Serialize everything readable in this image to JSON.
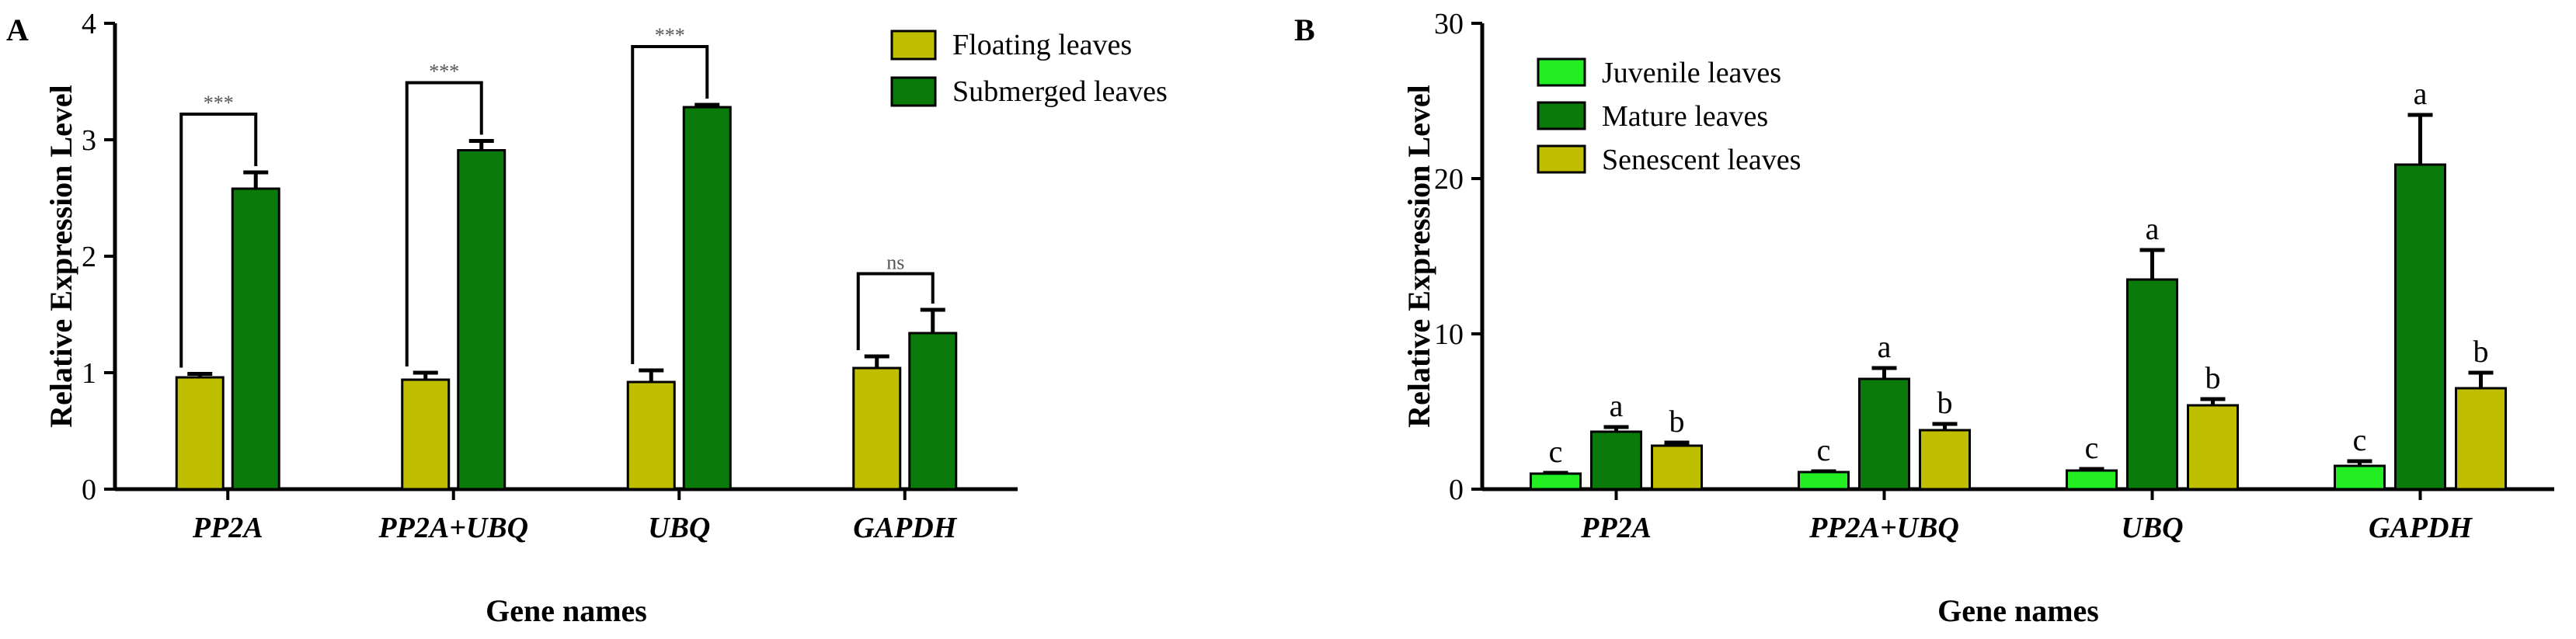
{
  "colors": {
    "floating": "#bfbf00",
    "submerged": "#0a7a0a",
    "juvenile": "#22ee22",
    "mature": "#0a7a0a",
    "senescent": "#bfbf00",
    "axis": "#000000",
    "bracket": "#000000"
  },
  "chart_data": [
    {
      "panel": "A",
      "type": "bar",
      "xlabel": "Gene names",
      "ylabel": "Relative Expression Level",
      "ylim": [
        0,
        4
      ],
      "yticks": [
        "0",
        "1",
        "2",
        "3",
        "4"
      ],
      "categories": [
        "PP2A",
        "PP2A+UBQ",
        "UBQ",
        "GAPDH"
      ],
      "series": [
        {
          "name": "Floating  leaves",
          "values": [
            0.96,
            0.94,
            0.92,
            1.04
          ],
          "errors": [
            0.03,
            0.06,
            0.1,
            0.1
          ],
          "color_key": "floating"
        },
        {
          "name": "Submerged leaves",
          "values": [
            2.58,
            2.91,
            3.28,
            1.34
          ],
          "errors": [
            0.14,
            0.08,
            0.02,
            0.2
          ],
          "color_key": "submerged"
        }
      ],
      "annotations": [
        "***",
        "***",
        "***",
        "ns"
      ],
      "legend_position": "top-right"
    },
    {
      "panel": "B",
      "type": "bar",
      "xlabel": "Gene names",
      "ylabel": "Relative Expression Level",
      "ylim": [
        0,
        30
      ],
      "yticks": [
        "0",
        "10",
        "20",
        "30"
      ],
      "categories": [
        "PP2A",
        "PP2A+UBQ",
        "UBQ",
        "GAPDH"
      ],
      "series": [
        {
          "name": "Juvenile leaves",
          "values": [
            1.0,
            1.1,
            1.2,
            1.5
          ],
          "errors": [
            0.05,
            0.05,
            0.1,
            0.3
          ],
          "color_key": "juvenile"
        },
        {
          "name": "Mature leaves",
          "values": [
            3.7,
            7.1,
            13.5,
            20.9
          ],
          "errors": [
            0.3,
            0.7,
            1.9,
            3.2
          ],
          "color_key": "mature"
        },
        {
          "name": "Senescent leaves",
          "values": [
            2.8,
            3.8,
            5.4,
            6.5
          ],
          "errors": [
            0.2,
            0.4,
            0.4,
            1.0
          ],
          "color_key": "senescent"
        }
      ],
      "letters": [
        [
          "c",
          "a",
          "b"
        ],
        [
          "c",
          "a",
          "b"
        ],
        [
          "c",
          "a",
          "b"
        ],
        [
          "c",
          "a",
          "b"
        ]
      ],
      "legend_position": "top-left"
    }
  ]
}
